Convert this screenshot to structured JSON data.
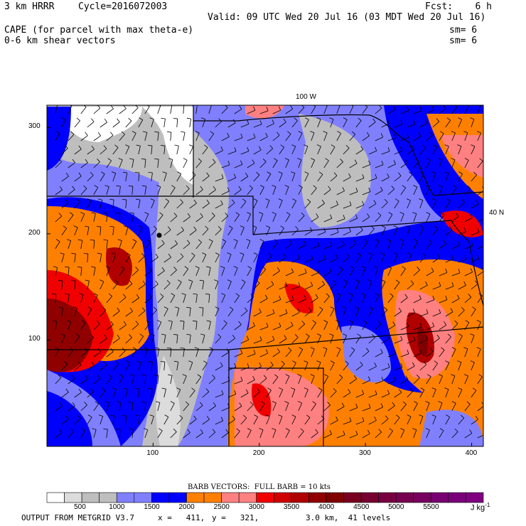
{
  "header": {
    "model": "3 km HRRR",
    "cycle": "Cycle=2016072003",
    "fcst": "Fcst:    6 h",
    "valid": "Valid: 09 UTC Wed 20 Jul 16 (03 MDT Wed 20 Jul 16)",
    "field1": "CAPE (for parcel with max theta-e)",
    "field1_sm": "sm= 6",
    "field2": "0-6 km shear vectors",
    "field2_sm": "sm= 6"
  },
  "map_labels": {
    "lon": "100 W",
    "lat": "40 N"
  },
  "barb_caption": "BARB VECTORS:  FULL BARB = 10 kts",
  "footer": {
    "source": "OUTPUT FROM METGRID V3.7",
    "x": "x =   411,",
    "y": "y =   321,",
    "res": "3.0 km,  41 levels"
  },
  "chart_data": {
    "type": "heatmap",
    "title": "CAPE (for parcel with max theta-e)",
    "xlim": [
      0,
      411
    ],
    "ylim": [
      0,
      321
    ],
    "xticks": [
      "100",
      "200",
      "300",
      "400"
    ],
    "xtick_values": [
      100,
      200,
      300,
      400
    ],
    "yticks": [
      "100",
      "200",
      "300"
    ],
    "ytick_values": [
      100,
      200,
      300
    ],
    "colorbar": {
      "unit": "J kg-1",
      "levels_step": 250,
      "tick_labels": [
        "500",
        "1000",
        "1500",
        "2000",
        "2500",
        "3000",
        "3500",
        "4000",
        "4500",
        "5000",
        "5500"
      ],
      "colors": [
        "#ffffff",
        "#dcdcdc",
        "#bebebe",
        "#bebebe",
        "#8080ff",
        "#8080ff",
        "#0000ff",
        "#0000ff",
        "#ff8000",
        "#ff8000",
        "#ff8080",
        "#ff8080",
        "#f00000",
        "#d00000",
        "#b00000",
        "#900000",
        "#800000",
        "#7a0020",
        "#780030",
        "#780040",
        "#780050",
        "#780060",
        "#780070",
        "#7a007a",
        "#800080"
      ]
    }
  }
}
